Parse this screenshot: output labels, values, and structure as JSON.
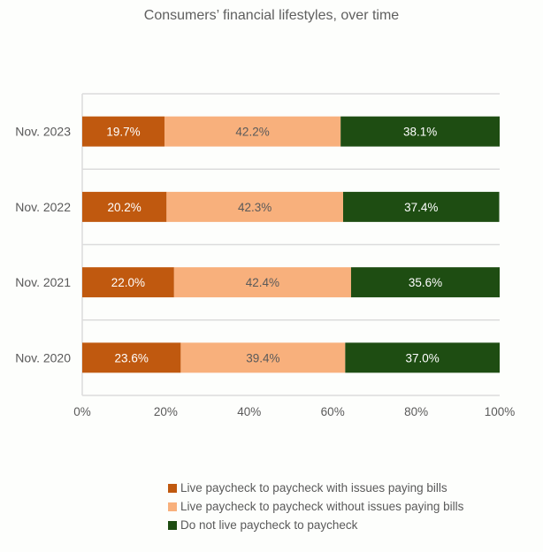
{
  "chart_data": {
    "type": "bar",
    "orientation": "horizontal",
    "stacked": true,
    "title": "Consumers’ financial lifestyles, over time",
    "xlabel": "",
    "ylabel": "",
    "xlim": [
      0,
      100
    ],
    "x_ticks": [
      "0%",
      "20%",
      "40%",
      "60%",
      "80%",
      "100%"
    ],
    "grid": true,
    "legend_position": "bottom",
    "categories": [
      "Nov. 2023",
      "Nov. 2022",
      "Nov. 2021",
      "Nov. 2020"
    ],
    "series": [
      {
        "name": "Live paycheck to paycheck with issues paying bills",
        "color": "#c0590f",
        "label_color": "#ffffff",
        "values": [
          19.7,
          20.2,
          22.0,
          23.6
        ],
        "labels": [
          "19.7%",
          "20.2%",
          "22.0%",
          "23.6%"
        ]
      },
      {
        "name": "Live paycheck to paycheck without issues paying bills",
        "color": "#f8b07c",
        "label_color": "#5a5a5a",
        "values": [
          42.2,
          42.3,
          42.4,
          39.4
        ],
        "labels": [
          "42.2%",
          "42.3%",
          "42.4%",
          "39.4%"
        ]
      },
      {
        "name": "Do not live paycheck to paycheck",
        "color": "#1e4d12",
        "label_color": "#ffffff",
        "values": [
          38.1,
          37.4,
          35.6,
          37.0
        ],
        "labels": [
          "38.1%",
          "37.4%",
          "35.6%",
          "37.0%"
        ]
      }
    ]
  }
}
